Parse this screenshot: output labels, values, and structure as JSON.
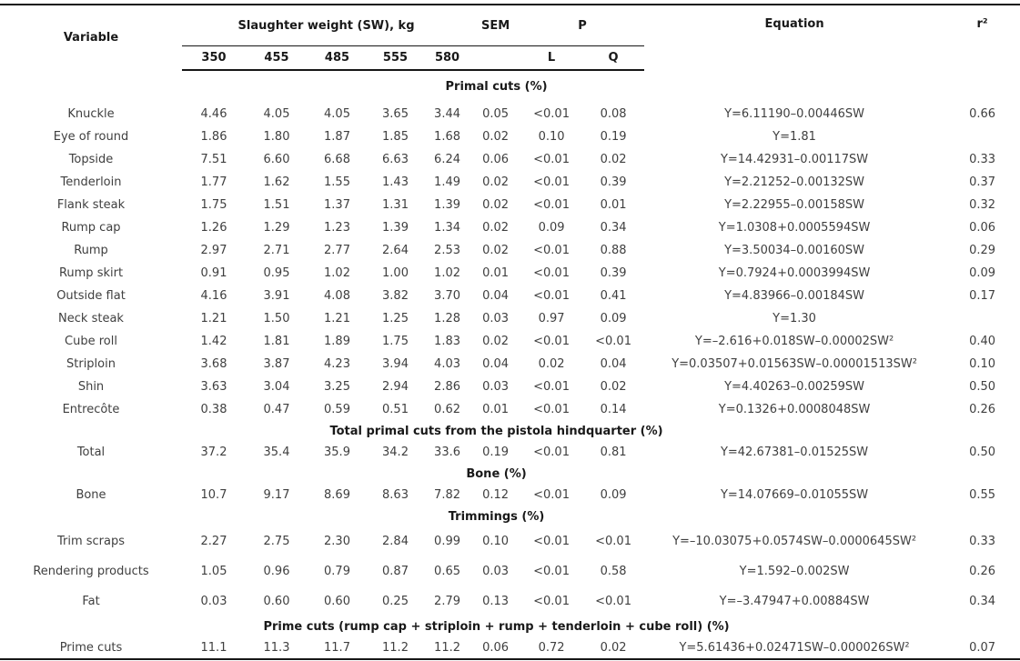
{
  "table": {
    "header": {
      "variable": "Variable",
      "sw_group": "Slaughter weight (SW), kg",
      "sw_levels": [
        "350",
        "455",
        "485",
        "555",
        "580"
      ],
      "sem": "SEM",
      "p": "P",
      "p_sub": [
        "L",
        "Q"
      ],
      "equation": "Equation",
      "r2": "r²"
    },
    "sections": [
      {
        "title": "Primal cuts (%)",
        "rows": [
          {
            "variable": "Knuckle",
            "values": [
              "4.46",
              "4.05",
              "4.05",
              "3.65",
              "3.44"
            ],
            "sem": "0.05",
            "l": "<0.01",
            "q": "0.08",
            "equation": "Y=6.11190–0.00446SW",
            "r2": "0.66"
          },
          {
            "variable": "Eye of round",
            "values": [
              "1.86",
              "1.80",
              "1.87",
              "1.85",
              "1.68"
            ],
            "sem": "0.02",
            "l": "0.10",
            "q": "0.19",
            "equation": "Y=1.81",
            "r2": ""
          },
          {
            "variable": "Topside",
            "values": [
              "7.51",
              "6.60",
              "6.68",
              "6.63",
              "6.24"
            ],
            "sem": "0.06",
            "l": "<0.01",
            "q": "0.02",
            "equation": "Y=14.42931–0.00117SW",
            "r2": "0.33"
          },
          {
            "variable": "Tenderloin",
            "values": [
              "1.77",
              "1.62",
              "1.55",
              "1.43",
              "1.49"
            ],
            "sem": "0.02",
            "l": "<0.01",
            "q": "0.39",
            "equation": "Y=2.21252–0.00132SW",
            "r2": "0.37"
          },
          {
            "variable": "Flank steak",
            "values": [
              "1.75",
              "1.51",
              "1.37",
              "1.31",
              "1.39"
            ],
            "sem": "0.02",
            "l": "<0.01",
            "q": "0.01",
            "equation": "Y=2.22955–0.00158SW",
            "r2": "0.32"
          },
          {
            "variable": "Rump cap",
            "values": [
              "1.26",
              "1.29",
              "1.23",
              "1.39",
              "1.34"
            ],
            "sem": "0.02",
            "l": "0.09",
            "q": "0.34",
            "equation": "Y=1.0308+0.0005594SW",
            "r2": "0.06"
          },
          {
            "variable": "Rump",
            "values": [
              "2.97",
              "2.71",
              "2.77",
              "2.64",
              "2.53"
            ],
            "sem": "0.02",
            "l": "<0.01",
            "q": "0.88",
            "equation": "Y=3.50034–0.00160SW",
            "r2": "0.29"
          },
          {
            "variable": "Rump skirt",
            "values": [
              "0.91",
              "0.95",
              "1.02",
              "1.00",
              "1.02"
            ],
            "sem": "0.01",
            "l": "<0.01",
            "q": "0.39",
            "equation": "Y=0.7924+0.0003994SW",
            "r2": "0.09"
          },
          {
            "variable": "Outside flat",
            "values": [
              "4.16",
              "3.91",
              "4.08",
              "3.82",
              "3.70"
            ],
            "sem": "0.04",
            "l": "<0.01",
            "q": "0.41",
            "equation": "Y=4.83966–0.00184SW",
            "r2": "0.17"
          },
          {
            "variable": "Neck steak",
            "values": [
              "1.21",
              "1.50",
              "1.21",
              "1.25",
              "1.28"
            ],
            "sem": "0.03",
            "l": "0.97",
            "q": "0.09",
            "equation": "Y=1.30",
            "r2": ""
          },
          {
            "variable": "Cube roll",
            "values": [
              "1.42",
              "1.81",
              "1.89",
              "1.75",
              "1.83"
            ],
            "sem": "0.02",
            "l": "<0.01",
            "q": "<0.01",
            "equation": "Y=–2.616+0.018SW–0.00002SW²",
            "r2": "0.40"
          },
          {
            "variable": "Striploin",
            "values": [
              "3.68",
              "3.87",
              "4.23",
              "3.94",
              "4.03"
            ],
            "sem": "0.04",
            "l": "0.02",
            "q": "0.04",
            "equation": "Y=0.03507+0.01563SW–0.00001513SW²",
            "r2": "0.10"
          },
          {
            "variable": "Shin",
            "values": [
              "3.63",
              "3.04",
              "3.25",
              "2.94",
              "2.86"
            ],
            "sem": "0.03",
            "l": "<0.01",
            "q": "0.02",
            "equation": "Y=4.40263–0.00259SW",
            "r2": "0.50"
          },
          {
            "variable": "Entrecôte",
            "values": [
              "0.38",
              "0.47",
              "0.59",
              "0.51",
              "0.62"
            ],
            "sem": "0.01",
            "l": "<0.01",
            "q": "0.14",
            "equation": "Y=0.1326+0.0008048SW",
            "r2": "0.26"
          }
        ]
      },
      {
        "title": "Total primal cuts from the pistola hindquarter (%)",
        "rows": [
          {
            "variable": "Total",
            "values": [
              "37.2",
              "35.4",
              "35.9",
              "34.2",
              "33.6"
            ],
            "sem": "0.19",
            "l": "<0.01",
            "q": "0.81",
            "equation": "Y=42.67381–0.01525SW",
            "r2": "0.50"
          }
        ]
      },
      {
        "title": "Bone (%)",
        "rows": [
          {
            "variable": "Bone",
            "values": [
              "10.7",
              "9.17",
              "8.69",
              "8.63",
              "7.82"
            ],
            "sem": "0.12",
            "l": "<0.01",
            "q": "0.09",
            "equation": "Y=14.07669–0.01055SW",
            "r2": "0.55"
          }
        ]
      },
      {
        "title": "Trimmings (%)",
        "rows": [
          {
            "variable": "Trim scraps",
            "values": [
              "2.27",
              "2.75",
              "2.30",
              "2.84",
              "0.99"
            ],
            "sem": "0.10",
            "l": "<0.01",
            "q": "<0.01",
            "equation": "Y=–10.03075+0.0574SW–0.0000645SW²",
            "r2": "0.33"
          },
          {
            "variable": "Rendering products",
            "values": [
              "1.05",
              "0.96",
              "0.79",
              "0.87",
              "0.65"
            ],
            "sem": "0.03",
            "l": "<0.01",
            "q": "0.58",
            "equation": "Y=1.592–0.002SW",
            "r2": "0.26"
          },
          {
            "variable": "Fat",
            "values": [
              "0.03",
              "0.60",
              "0.60",
              "0.25",
              "2.79"
            ],
            "sem": "0.13",
            "l": "<0.01",
            "q": "<0.01",
            "equation": "Y=–3.47947+0.00884SW",
            "r2": "0.34"
          }
        ]
      },
      {
        "title": "Prime cuts (rump cap + striploin + rump + tenderloin + cube roll) (%)",
        "rows": [
          {
            "variable": "Prime cuts",
            "values": [
              "11.1",
              "11.3",
              "11.7",
              "11.2",
              "11.2"
            ],
            "sem": "0.06",
            "l": "0.72",
            "q": "0.02",
            "equation": "Y=5.61436+0.02471SW–0.000026SW²",
            "r2": "0.07"
          }
        ]
      }
    ]
  }
}
